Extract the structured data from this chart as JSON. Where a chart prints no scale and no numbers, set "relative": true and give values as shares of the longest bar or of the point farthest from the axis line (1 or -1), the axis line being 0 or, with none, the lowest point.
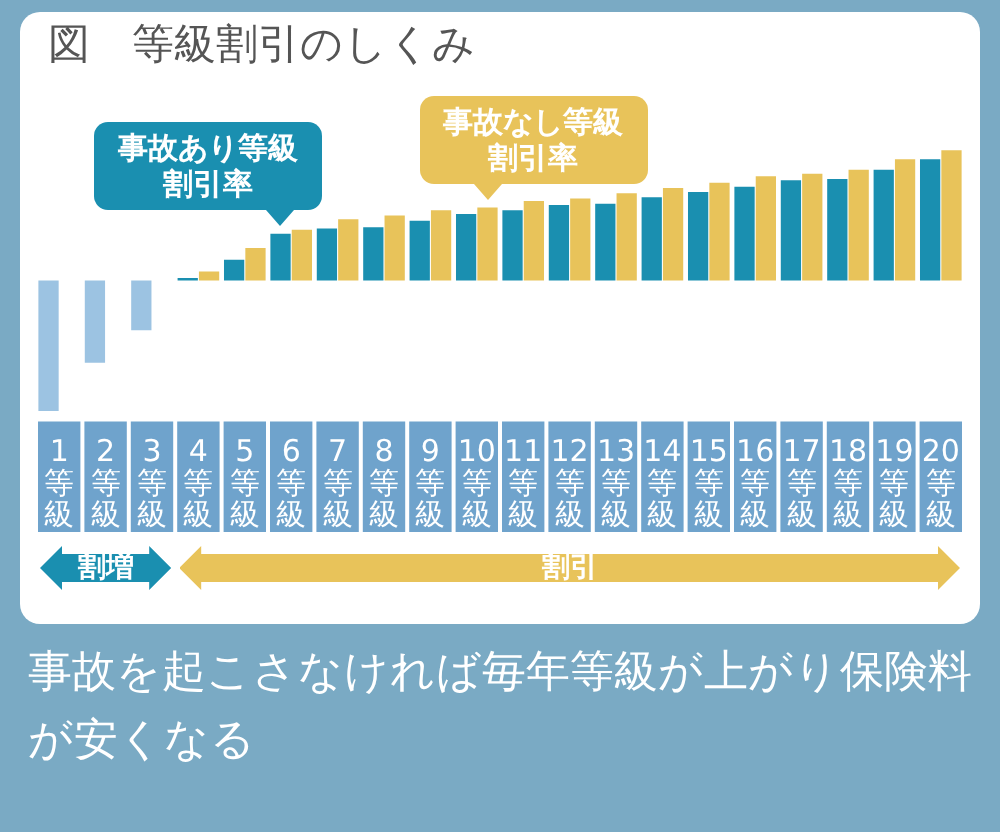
{
  "chart_data": {
    "type": "bar",
    "title": "図　等級割引のしくみ",
    "relative": true,
    "categories": [
      "1等級",
      "2等級",
      "3等級",
      "4等級",
      "5等級",
      "6等級",
      "7等級",
      "8等級",
      "9等級",
      "10等級",
      "11等級",
      "12等級",
      "13等級",
      "14等級",
      "15等級",
      "16等級",
      "17等級",
      "18等級",
      "19等級",
      "20等級"
    ],
    "series": [
      {
        "name": "事故あり等級割引率",
        "colors": [
          "#9cc3e2",
          "#9cc3e2",
          "#9cc3e2",
          "#1a8fb0",
          "#1a8fb0",
          "#1a8fb0",
          "#1a8fb0",
          "#1a8fb0",
          "#1a8fb0",
          "#1a8fb0",
          "#1a8fb0",
          "#1a8fb0",
          "#1a8fb0",
          "#1a8fb0",
          "#1a8fb0",
          "#1a8fb0",
          "#1a8fb0",
          "#1a8fb0",
          "#1a8fb0",
          "#1a8fb0"
        ],
        "values": [
          -1,
          -0.63,
          -0.38,
          0.02,
          0.16,
          0.36,
          0.4,
          0.41,
          0.46,
          0.51,
          0.54,
          0.58,
          0.59,
          0.64,
          0.68,
          0.72,
          0.77,
          0.78,
          0.85,
          0.93
        ]
      },
      {
        "name": "事故なし等級割引率",
        "color": "#e8c35a",
        "values": [
          null,
          null,
          null,
          0.07,
          0.25,
          0.39,
          0.47,
          0.5,
          0.54,
          0.56,
          0.61,
          0.63,
          0.67,
          0.71,
          0.75,
          0.8,
          0.82,
          0.85,
          0.93,
          1
        ]
      }
    ],
    "annotations": [
      "事故を起こさなければ毎年等級が上がり保険料が安くなる",
      "割増",
      "割引"
    ]
  }
}
